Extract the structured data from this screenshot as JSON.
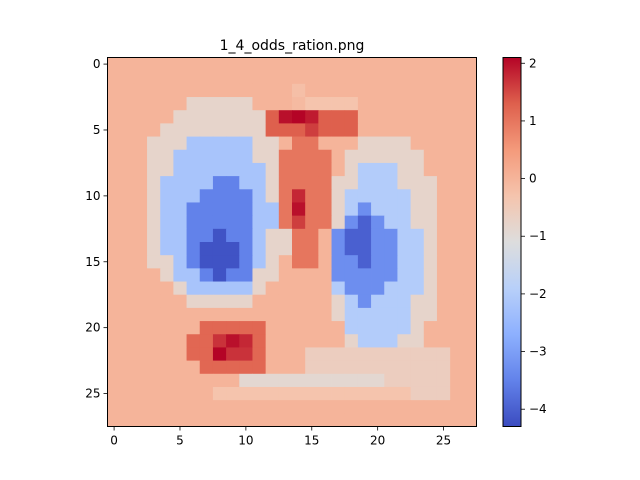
{
  "chart_data": {
    "type": "heatmap",
    "title": "1_4_odds_ration.png",
    "xlabel": "",
    "ylabel": "",
    "rows": 28,
    "cols": 28,
    "xlim": [
      -0.5,
      27.5
    ],
    "ylim": [
      27.5,
      -0.5
    ],
    "x_ticks": [
      0,
      5,
      10,
      15,
      20,
      25
    ],
    "y_ticks": [
      0,
      5,
      10,
      15,
      20,
      25
    ],
    "colormap": "coolwarm",
    "vmin": -4.3,
    "vmax": 2.1,
    "colorbar_ticks": [
      2,
      1,
      0,
      -1,
      -2,
      -3,
      -4
    ],
    "colorbar_tick_labels": [
      "2",
      "1",
      "0",
      "−1",
      "−2",
      "−3",
      "−4"
    ],
    "background_value": 0.0,
    "values_note": "Values estimated from colour; cells not listed equal background_value.",
    "regions": [
      {
        "kind": "rect",
        "r0": 0,
        "r1": 27,
        "c0": 0,
        "c1": 27,
        "v": 0.0
      },
      {
        "kind": "rect",
        "r0": 3,
        "r1": 3,
        "c0": 15,
        "c1": 18,
        "v": -0.3
      },
      {
        "kind": "ellipse",
        "cy": 10.5,
        "cx": 7.8,
        "ry": 8.5,
        "rx": 5.8,
        "v": -0.8
      },
      {
        "kind": "ellipse",
        "cy": 11.5,
        "cx": 7.8,
        "ry": 6.5,
        "rx": 4.3,
        "v": -2.2
      },
      {
        "kind": "ellipse",
        "cy": 12.8,
        "cx": 8.2,
        "ry": 4.2,
        "rx": 2.8,
        "v": -3.5
      },
      {
        "kind": "ellipse",
        "cy": 14.5,
        "cx": 8.0,
        "ry": 1.5,
        "rx": 2.0,
        "v": -4.2
      },
      {
        "kind": "ellipse",
        "cy": 14.0,
        "cx": 20.5,
        "ry": 9.0,
        "rx": 4.3,
        "v": -0.8
      },
      {
        "kind": "ellipse",
        "cy": 15.0,
        "cx": 20.0,
        "ry": 7.5,
        "rx": 3.2,
        "v": -2.0
      },
      {
        "kind": "ellipse",
        "cy": 14.5,
        "cx": 19.0,
        "ry": 3.8,
        "rx": 2.3,
        "v": -3.3
      },
      {
        "kind": "ellipse",
        "cy": 13.5,
        "cx": 18.7,
        "ry": 1.8,
        "rx": 1.1,
        "v": -4.0
      },
      {
        "kind": "rect",
        "r0": 22,
        "r1": 25,
        "c0": 15,
        "c1": 25,
        "v": -0.6
      },
      {
        "kind": "rect",
        "r0": 24,
        "r1": 24,
        "c0": 10,
        "c1": 20,
        "v": -0.9
      },
      {
        "kind": "rect",
        "r0": 25,
        "r1": 25,
        "c0": 8,
        "c1": 22,
        "v": -0.3
      },
      {
        "kind": "ellipse",
        "cy": 9.5,
        "cx": 14.5,
        "ry": 6.0,
        "rx": 1.8,
        "v": 1.0
      },
      {
        "kind": "rect",
        "r0": 4,
        "r1": 5,
        "c0": 12,
        "c1": 18,
        "v": 1.3
      },
      {
        "kind": "ellipse",
        "cy": 21.5,
        "cx": 8.7,
        "ry": 2.5,
        "rx": 3.2,
        "v": 1.2
      },
      {
        "kind": "ellipse",
        "cy": 21.5,
        "cx": 8.7,
        "ry": 1.2,
        "rx": 1.6,
        "v": 1.7
      }
    ],
    "cells": [
      [
        4,
        13,
        2.0
      ],
      [
        4,
        14,
        2.1
      ],
      [
        4,
        15,
        1.9
      ],
      [
        5,
        15,
        1.6
      ],
      [
        10,
        14,
        1.8
      ],
      [
        11,
        14,
        2.0
      ],
      [
        12,
        14,
        1.6
      ],
      [
        21,
        9,
        2.0
      ],
      [
        22,
        8,
        2.1
      ],
      [
        21,
        10,
        1.8
      ],
      [
        2,
        14,
        -0.2
      ],
      [
        3,
        14,
        -0.1
      ]
    ]
  }
}
